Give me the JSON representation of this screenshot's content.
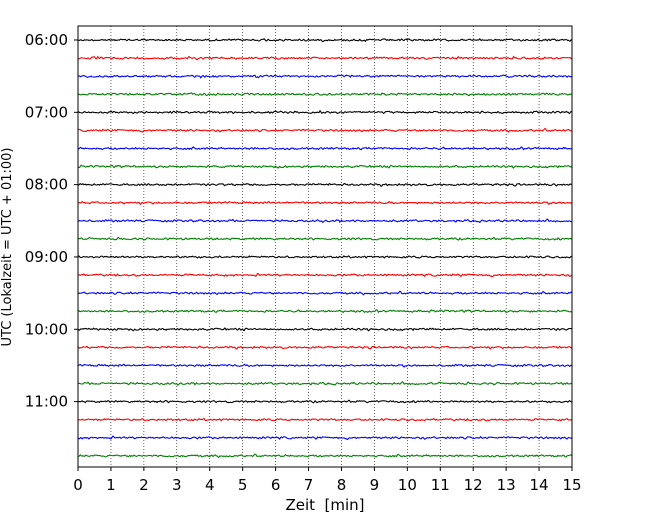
{
  "chart_data": {
    "type": "line",
    "xlabel": "Zeit  [min]",
    "ylabel": "UTC (Lokalzeit = UTC + 01:00)",
    "xlim": [
      0,
      15
    ],
    "x_ticks": [
      "0",
      "1",
      "2",
      "3",
      "4",
      "5",
      "6",
      "7",
      "8",
      "9",
      "10",
      "11",
      "12",
      "13",
      "14",
      "15"
    ],
    "y_ticks": [
      "06:00",
      "07:00",
      "08:00",
      "09:00",
      "10:00",
      "11:00"
    ],
    "grid": "vertical dotted",
    "traces": [
      {
        "start": "06:00",
        "color": "#000000"
      },
      {
        "start": "06:15",
        "color": "#ff0000"
      },
      {
        "start": "06:30",
        "color": "#0000ff"
      },
      {
        "start": "06:45",
        "color": "#008000"
      },
      {
        "start": "07:00",
        "color": "#000000"
      },
      {
        "start": "07:15",
        "color": "#ff0000"
      },
      {
        "start": "07:30",
        "color": "#0000ff"
      },
      {
        "start": "07:45",
        "color": "#008000"
      },
      {
        "start": "08:00",
        "color": "#000000"
      },
      {
        "start": "08:15",
        "color": "#ff0000"
      },
      {
        "start": "08:30",
        "color": "#0000ff"
      },
      {
        "start": "08:45",
        "color": "#008000"
      },
      {
        "start": "09:00",
        "color": "#000000"
      },
      {
        "start": "09:15",
        "color": "#ff0000"
      },
      {
        "start": "09:30",
        "color": "#0000ff"
      },
      {
        "start": "09:45",
        "color": "#008000"
      },
      {
        "start": "10:00",
        "color": "#000000"
      },
      {
        "start": "10:15",
        "color": "#ff0000"
      },
      {
        "start": "10:30",
        "color": "#0000ff"
      },
      {
        "start": "10:45",
        "color": "#008000"
      },
      {
        "start": "11:00",
        "color": "#000000"
      },
      {
        "start": "11:15",
        "color": "#ff0000"
      },
      {
        "start": "11:30",
        "color": "#0000ff"
      },
      {
        "start": "11:45",
        "color": "#008000"
      }
    ]
  }
}
